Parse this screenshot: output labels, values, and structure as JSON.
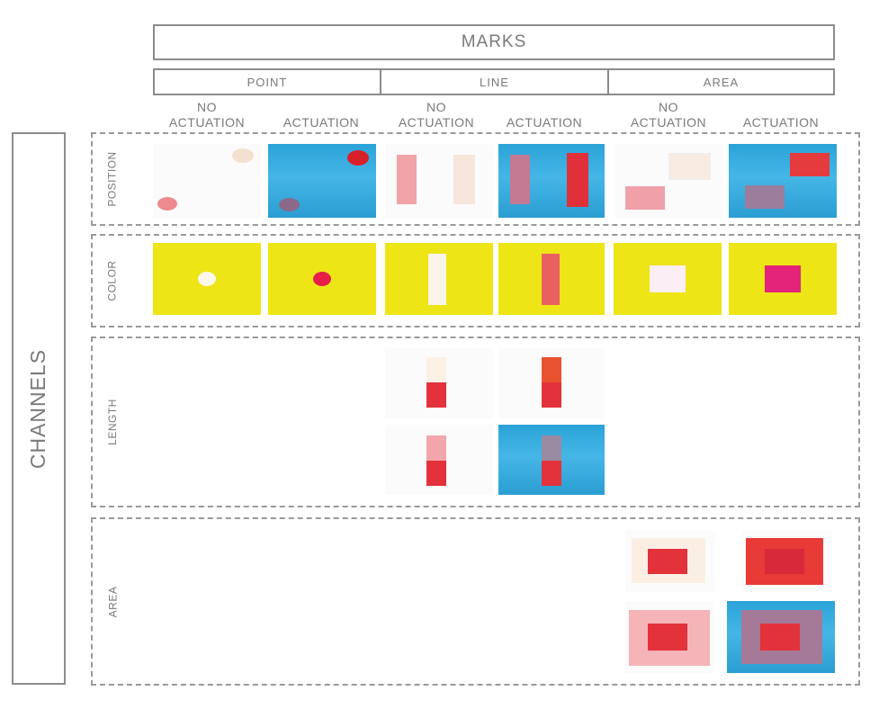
{
  "marks": {
    "title": "MARKS",
    "columns": [
      "POINT",
      "LINE",
      "AREA"
    ]
  },
  "subheaders": {
    "no_actuation_1": "NO",
    "no_actuation_2": "ACTUATION",
    "actuation": "ACTUATION"
  },
  "channels": {
    "title": "CHANNELS",
    "rows": [
      "POSITION",
      "COLOR",
      "LENGTH",
      "AREA"
    ]
  },
  "colors": {
    "blue": "#2ba3d8",
    "yellow": "#eee516",
    "red": "#e8333a",
    "border": "#8c8c8c"
  }
}
